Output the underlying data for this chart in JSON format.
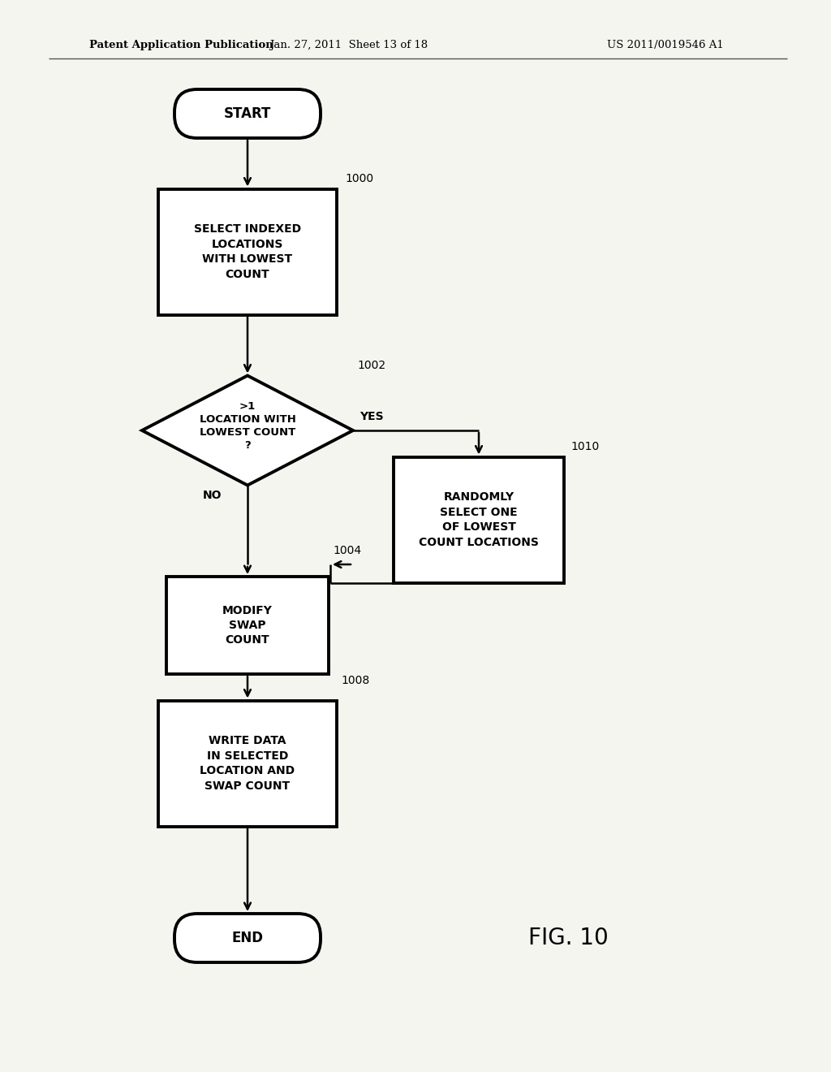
{
  "bg_color": "#f5f5f0",
  "header_left": "Patent Application Publication",
  "header_mid": "Jan. 27, 2011  Sheet 13 of 18",
  "header_right": "US 2011/0019546 A1",
  "fig_label": "FIG. 10",
  "start_label": "START",
  "end_label": "END",
  "box1_label": "SELECT INDEXED\nLOCATIONS\nWITH LOWEST\nCOUNT",
  "box1_num": "1000",
  "diamond_label": ">1\nLOCATION WITH\nLOWEST COUNT\n?",
  "diamond_num": "1002",
  "box2_label": "RANDOMLY\nSELECT ONE\nOF LOWEST\nCOUNT LOCATIONS",
  "box2_num": "1010",
  "box3_label": "MODIFY\nSWAP\nCOUNT",
  "box3_num": "1004",
  "box4_label": "WRITE DATA\nIN SELECTED\nLOCATION AND\nSWAP COUNT",
  "box4_num": "1008",
  "yes_label": "YES",
  "no_label": "NO",
  "line_color": "#000000",
  "text_color": "#000000",
  "lw": 1.8
}
